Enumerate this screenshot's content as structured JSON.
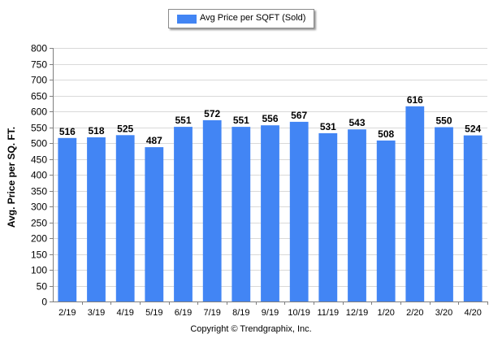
{
  "chart_data": {
    "type": "bar",
    "title": "",
    "xlabel": "",
    "ylabel": "Avg. Price per SQ. FT.",
    "legend": [
      "Avg Price per SQFT (Sold)"
    ],
    "legend_position": "top-center",
    "categories": [
      "2/19",
      "3/19",
      "4/19",
      "5/19",
      "6/19",
      "7/19",
      "8/19",
      "9/19",
      "10/19",
      "11/19",
      "12/19",
      "1/20",
      "2/20",
      "3/20",
      "4/20"
    ],
    "series": [
      {
        "name": "Avg Price per SQFT (Sold)",
        "values": [
          516,
          518,
          525,
          487,
          551,
          572,
          551,
          556,
          567,
          531,
          543,
          508,
          616,
          550,
          524
        ],
        "data_labels": [
          "516",
          "518",
          "525",
          "487",
          "551",
          "572",
          "551",
          "556",
          "567",
          "531",
          "543",
          "508",
          "616",
          "550",
          "524"
        ]
      }
    ],
    "ylim": [
      0,
      800
    ],
    "ytick_labels": [
      "0",
      "50",
      "100",
      "150",
      "200",
      "250",
      "300",
      "350",
      "400",
      "450",
      "500",
      "550",
      "600",
      "650",
      "700",
      "750",
      "800"
    ],
    "grid": true,
    "footer": "Copyright © Trendgraphix, Inc."
  },
  "colors": {
    "bar": "#4285f4",
    "bar_highlight": "#4d8ff7",
    "grid": "#d9d9d9",
    "axis": "#7f7f7f"
  }
}
